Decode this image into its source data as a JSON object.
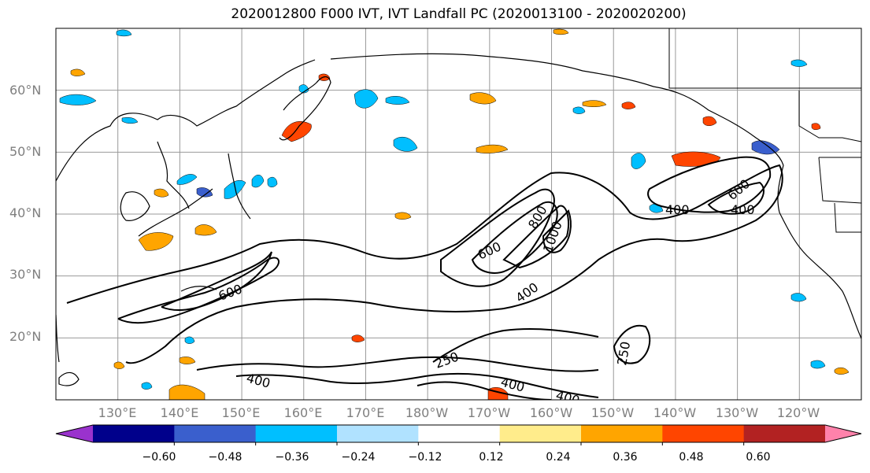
{
  "title": "2020012800 F000 IVT, IVT Landfall PC (2020013100 - 2020020200)",
  "latitude_labels": [
    "60°N",
    "50°N",
    "40°N",
    "30°N",
    "20°N"
  ],
  "longitude_labels": [
    "130°E",
    "140°E",
    "150°E",
    "160°E",
    "170°E",
    "180°W",
    "170°W",
    "160°W",
    "150°W",
    "140°W",
    "130°W",
    "120°W"
  ],
  "contour_labels": [
    "1000",
    "800",
    "600",
    "400",
    "400",
    "600",
    "400",
    "250",
    "250",
    "400",
    "400",
    "400",
    "600"
  ],
  "colorbar": {
    "tick_labels": [
      "−0.60",
      "−0.48",
      "−0.36",
      "−0.24",
      "−0.12",
      "0.12",
      "0.24",
      "0.36",
      "0.48",
      "0.60"
    ],
    "colors": [
      "#9a32cd",
      "#00008b",
      "#3a5fcd",
      "#00bfff",
      "#b0e2ff",
      "#ffffff",
      "#ffec8b",
      "#ffa500",
      "#ff4500",
      "#b22222",
      "#ff82ab"
    ]
  },
  "map": {
    "lat_range": [
      10,
      70
    ],
    "lon_range": [
      120,
      250
    ],
    "contour_levels": [
      250,
      400,
      600,
      800,
      1000
    ],
    "gridlines": true
  }
}
